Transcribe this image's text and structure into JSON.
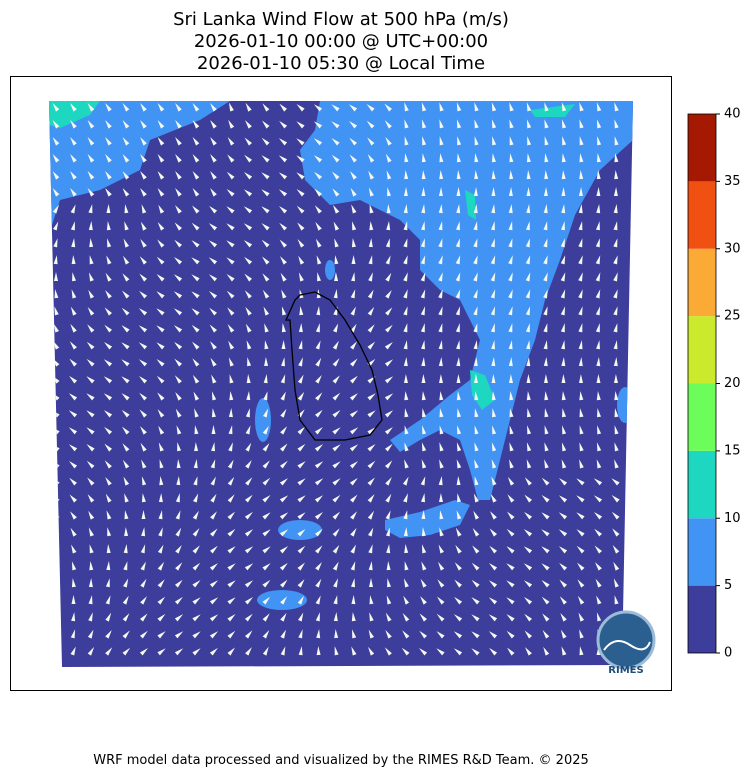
{
  "title": [
    "Sri Lanka Wind Flow at 500 hPa (m/s)",
    "2026-01-10 00:00 @ UTC+00:00",
    "2026-01-10 05:30 @ Local Time"
  ],
  "colorbar": {
    "levels": [
      0,
      5,
      10,
      15,
      20,
      25,
      30,
      35,
      40
    ],
    "colors": [
      "#3d3d9c",
      "#4193f4",
      "#1dd7c0",
      "#6dfd5a",
      "#cbea2b",
      "#fbab35",
      "#f05011",
      "#a51902"
    ]
  },
  "logo": "RIMES",
  "footer": "WRF model data processed and visualized by the RIMES R&D Team. © 2025"
}
